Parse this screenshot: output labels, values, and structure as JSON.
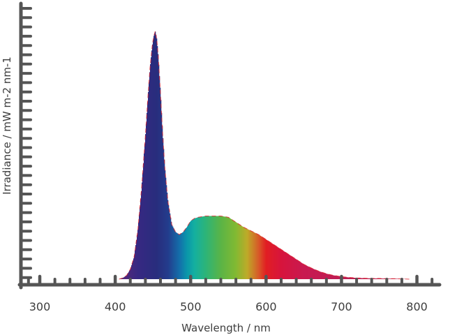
{
  "chart_data": {
    "type": "area",
    "title": "",
    "xlabel": "Wavelength / nm",
    "ylabel": "Irradiance / mW m-2 nm-1",
    "xlim": [
      275,
      830
    ],
    "ylim": [
      0,
      1.0
    ],
    "x_ticks": [
      300,
      400,
      500,
      600,
      700,
      800
    ],
    "x_tick_labels": [
      "300",
      "400",
      "500",
      "600",
      "700",
      "800"
    ],
    "y_tick_labels_shown": false,
    "fill": "spectral-colors-by-wavelength",
    "axis_color": "#555555",
    "outline_color": "#e0232b",
    "series": [
      {
        "x": [
          405,
          410,
          415,
          420,
          425,
          430,
          435,
          440,
          443,
          446,
          449,
          451,
          453,
          455,
          457,
          460,
          463,
          466,
          470,
          475,
          480,
          485,
          490,
          495,
          500,
          505,
          510,
          520,
          530,
          540,
          550,
          560,
          570,
          580,
          590,
          600,
          610,
          620,
          630,
          640,
          650,
          660,
          670,
          680,
          690,
          700,
          710,
          720,
          730,
          740,
          750,
          760,
          770,
          780,
          790
        ],
        "y": [
          0.0,
          0.005,
          0.015,
          0.04,
          0.09,
          0.2,
          0.37,
          0.58,
          0.72,
          0.85,
          0.94,
          0.98,
          1.0,
          0.97,
          0.9,
          0.75,
          0.58,
          0.44,
          0.31,
          0.22,
          0.19,
          0.18,
          0.19,
          0.21,
          0.235,
          0.245,
          0.25,
          0.255,
          0.255,
          0.255,
          0.25,
          0.23,
          0.21,
          0.195,
          0.18,
          0.16,
          0.14,
          0.12,
          0.1,
          0.08,
          0.06,
          0.045,
          0.032,
          0.022,
          0.015,
          0.01,
          0.007,
          0.005,
          0.004,
          0.003,
          0.003,
          0.002,
          0.002,
          0.001,
          0.0
        ]
      }
    ]
  }
}
